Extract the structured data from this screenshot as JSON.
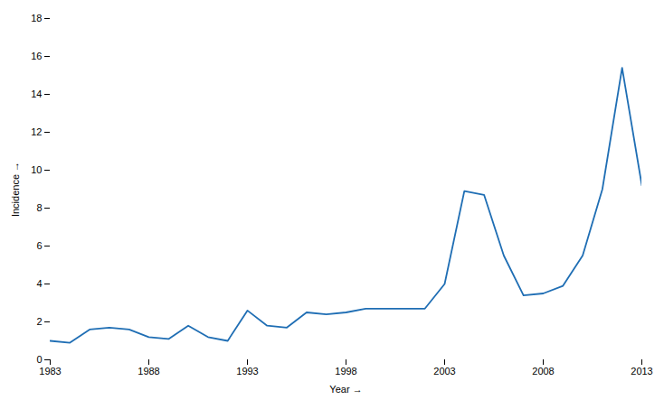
{
  "chart_data": {
    "type": "line",
    "x": [
      1983,
      1984,
      1985,
      1986,
      1987,
      1988,
      1989,
      1990,
      1991,
      1992,
      1993,
      1994,
      1995,
      1996,
      1997,
      1998,
      1999,
      2000,
      2001,
      2002,
      2003,
      2004,
      2005,
      2006,
      2007,
      2008,
      2009,
      2010,
      2011,
      2012,
      2013
    ],
    "values": [
      1.0,
      0.9,
      1.6,
      1.7,
      1.6,
      1.2,
      1.1,
      1.8,
      1.2,
      1.0,
      2.6,
      1.8,
      1.7,
      2.5,
      2.4,
      2.5,
      2.7,
      2.7,
      2.7,
      2.7,
      4.0,
      8.9,
      8.7,
      5.5,
      3.4,
      3.5,
      3.9,
      5.5,
      9.0,
      15.4,
      9.2
    ],
    "color": "#1f6eb4",
    "xlabel": "Year",
    "ylabel": "Incidence",
    "xlim": [
      1983,
      2013
    ],
    "ylim": [
      0,
      18
    ],
    "xticks": [
      1983,
      1988,
      1993,
      1998,
      2003,
      2008,
      2013
    ],
    "yticks": [
      0,
      2,
      4,
      6,
      8,
      10,
      12,
      14,
      16,
      18
    ]
  }
}
